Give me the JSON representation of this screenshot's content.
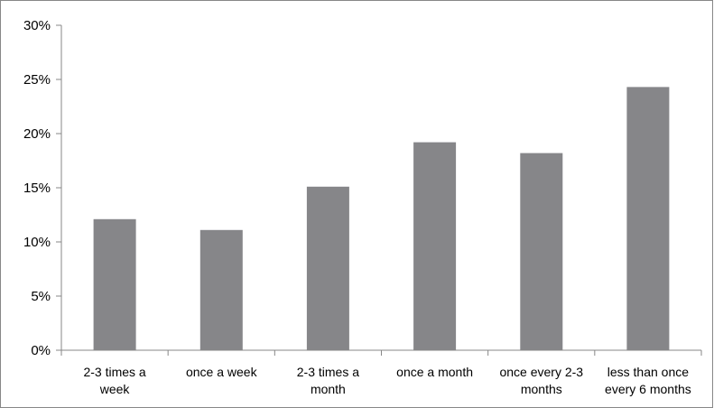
{
  "chart_data": {
    "type": "bar",
    "categories": [
      [
        "2-3 times a",
        "week"
      ],
      [
        "once a week"
      ],
      [
        "2-3 times a",
        "month"
      ],
      [
        "once a month"
      ],
      [
        "once every 2-3",
        "months"
      ],
      [
        "less than once",
        "every 6 months"
      ]
    ],
    "values": [
      12.1,
      11.1,
      15.1,
      19.2,
      18.2,
      24.3
    ],
    "ylim": [
      0,
      30
    ],
    "yticks": [
      "0%",
      "5%",
      "10%",
      "15%",
      "20%",
      "25%",
      "30%"
    ],
    "title": "",
    "xlabel": "",
    "ylabel": "",
    "grid": false,
    "legend": "none",
    "bar_color": "#868689",
    "axis_color": "#878787"
  }
}
